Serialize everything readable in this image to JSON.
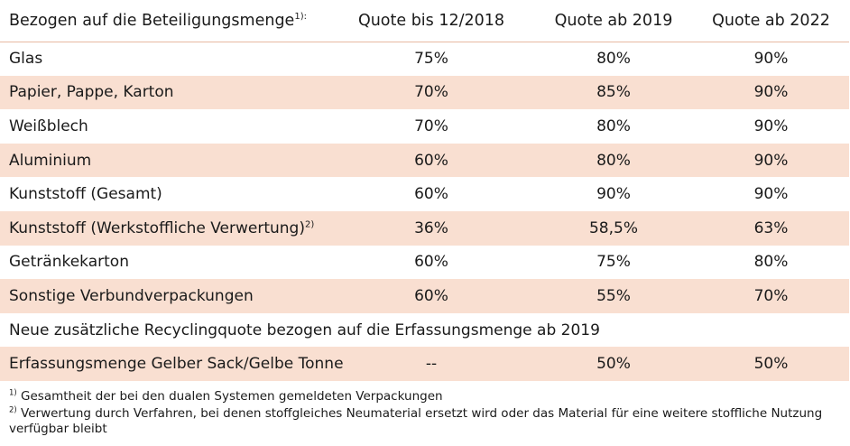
{
  "header": {
    "col0": "Bezogen auf die Beteiligungsmenge",
    "col0_sup": "1):",
    "col1": "Quote bis 12/2018",
    "col2": "Quote ab 2019",
    "col3": "Quote ab 2022"
  },
  "rows": [
    {
      "label": "Glas",
      "sup": "",
      "q2018": "75%",
      "q2019": "80%",
      "q2022": "90%"
    },
    {
      "label": "Papier, Pappe, Karton",
      "sup": "",
      "q2018": "70%",
      "q2019": "85%",
      "q2022": "90%"
    },
    {
      "label": "Weißblech",
      "sup": "",
      "q2018": "70%",
      "q2019": "80%",
      "q2022": "90%"
    },
    {
      "label": "Aluminium",
      "sup": "",
      "q2018": "60%",
      "q2019": "80%",
      "q2022": "90%"
    },
    {
      "label": "Kunststoff (Gesamt)",
      "sup": "",
      "q2018": "60%",
      "q2019": "90%",
      "q2022": "90%"
    },
    {
      "label": "Kunststoff (Werkstoffliche Verwertung)",
      "sup": "2)",
      "q2018": "36%",
      "q2019": "58,5%",
      "q2022": "63%"
    },
    {
      "label": "Getränkekarton",
      "sup": "",
      "q2018": "60%",
      "q2019": "75%",
      "q2022": "80%"
    },
    {
      "label": "Sonstige Verbundverpackungen",
      "sup": "",
      "q2018": "60%",
      "q2019": "55%",
      "q2022": "70%"
    }
  ],
  "section_title": "Neue zusätzliche Recyclingquote bezogen auf die Erfassungsmenge ab 2019",
  "extra_row": {
    "label": "Erfassungsmenge Gelber Sack/Gelbe Tonne",
    "q2018": "--",
    "q2019": "50%",
    "q2022": "50%"
  },
  "footnotes": {
    "fn1_mark": "1)",
    "fn1_text": "Gesamtheit der bei den dualen Systemen gemeldeten Verpackungen",
    "fn2_mark": "2)",
    "fn2_text": "Verwertung durch Verfahren, bei denen stoffgleiches Neumaterial ersetzt wird oder das Material für eine weitere stoffliche Nutzung verfügbar bleibt"
  }
}
